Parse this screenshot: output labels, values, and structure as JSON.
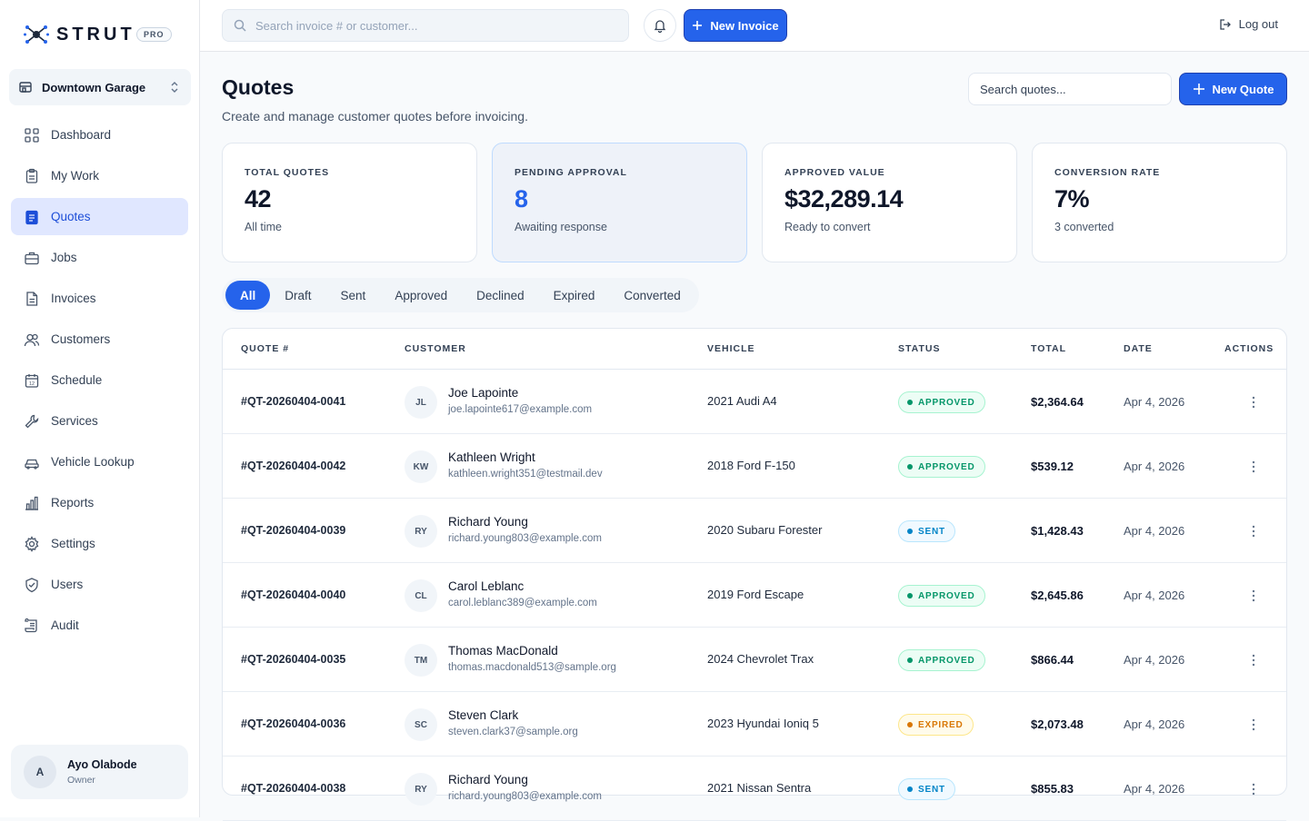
{
  "brand": {
    "name": "STRUT",
    "badge": "PRO"
  },
  "location": {
    "label": "Downtown Garage"
  },
  "nav": [
    {
      "label": "Dashboard",
      "icon": "grid-icon"
    },
    {
      "label": "My Work",
      "icon": "clipboard-icon"
    },
    {
      "label": "Quotes",
      "icon": "quote-doc-icon",
      "active": true
    },
    {
      "label": "Jobs",
      "icon": "briefcase-icon"
    },
    {
      "label": "Invoices",
      "icon": "invoice-icon"
    },
    {
      "label": "Customers",
      "icon": "users-icon"
    },
    {
      "label": "Schedule",
      "icon": "calendar-icon"
    },
    {
      "label": "Services",
      "icon": "wrench-icon"
    },
    {
      "label": "Vehicle Lookup",
      "icon": "car-icon"
    },
    {
      "label": "Reports",
      "icon": "bar-chart-icon"
    },
    {
      "label": "Settings",
      "icon": "gear-icon"
    },
    {
      "label": "Users",
      "icon": "shield-icon"
    },
    {
      "label": "Audit",
      "icon": "scroll-icon"
    }
  ],
  "user": {
    "initial": "A",
    "name": "Ayo Olabode",
    "role": "Owner"
  },
  "topbar": {
    "search_placeholder": "Search invoice # or customer...",
    "new_invoice_label": "New Invoice",
    "logout_label": "Log out"
  },
  "page": {
    "title": "Quotes",
    "subtitle": "Create and manage customer quotes before invoicing.",
    "search_placeholder": "Search quotes...",
    "new_quote_label": "New Quote"
  },
  "stats": [
    {
      "label": "TOTAL QUOTES",
      "value": "42",
      "note": "All time"
    },
    {
      "label": "PENDING APPROVAL",
      "value": "8",
      "note": "Awaiting response",
      "highlight": true
    },
    {
      "label": "APPROVED VALUE",
      "value": "$32,289.14",
      "note": "Ready to convert"
    },
    {
      "label": "CONVERSION RATE",
      "value": "7%",
      "note": "3 converted"
    }
  ],
  "tabs": [
    {
      "label": "All",
      "active": true
    },
    {
      "label": "Draft"
    },
    {
      "label": "Sent"
    },
    {
      "label": "Approved"
    },
    {
      "label": "Declined"
    },
    {
      "label": "Expired"
    },
    {
      "label": "Converted"
    }
  ],
  "table": {
    "headers": {
      "quote": "QUOTE #",
      "customer": "CUSTOMER",
      "vehicle": "VEHICLE",
      "status": "STATUS",
      "total": "TOTAL",
      "date": "DATE",
      "actions": "ACTIONS"
    },
    "rows": [
      {
        "quote": "#QT-20260404-0041",
        "initials": "JL",
        "name": "Joe Lapointe",
        "email": "joe.lapointe617@example.com",
        "vehicle": "2021 Audi A4",
        "status": "APPROVED",
        "total": "$2,364.64",
        "date": "Apr 4, 2026"
      },
      {
        "quote": "#QT-20260404-0042",
        "initials": "KW",
        "name": "Kathleen Wright",
        "email": "kathleen.wright351@testmail.dev",
        "vehicle": "2018 Ford F-150",
        "status": "APPROVED",
        "total": "$539.12",
        "date": "Apr 4, 2026"
      },
      {
        "quote": "#QT-20260404-0039",
        "initials": "RY",
        "name": "Richard Young",
        "email": "richard.young803@example.com",
        "vehicle": "2020 Subaru Forester",
        "status": "SENT",
        "total": "$1,428.43",
        "date": "Apr 4, 2026"
      },
      {
        "quote": "#QT-20260404-0040",
        "initials": "CL",
        "name": "Carol Leblanc",
        "email": "carol.leblanc389@example.com",
        "vehicle": "2019 Ford Escape",
        "status": "APPROVED",
        "total": "$2,645.86",
        "date": "Apr 4, 2026"
      },
      {
        "quote": "#QT-20260404-0035",
        "initials": "TM",
        "name": "Thomas MacDonald",
        "email": "thomas.macdonald513@sample.org",
        "vehicle": "2024 Chevrolet Trax",
        "status": "APPROVED",
        "total": "$866.44",
        "date": "Apr 4, 2026"
      },
      {
        "quote": "#QT-20260404-0036",
        "initials": "SC",
        "name": "Steven Clark",
        "email": "steven.clark37@sample.org",
        "vehicle": "2023 Hyundai Ioniq 5",
        "status": "EXPIRED",
        "total": "$2,073.48",
        "date": "Apr 4, 2026"
      },
      {
        "quote": "#QT-20260404-0038",
        "initials": "RY",
        "name": "Richard Young",
        "email": "richard.young803@example.com",
        "vehicle": "2021 Nissan Sentra",
        "status": "SENT",
        "total": "$855.83",
        "date": "Apr 4, 2026"
      }
    ]
  },
  "colors": {
    "primary": "#2563eb",
    "approved": "#059669",
    "sent": "#0284c7",
    "expired": "#d97706"
  }
}
